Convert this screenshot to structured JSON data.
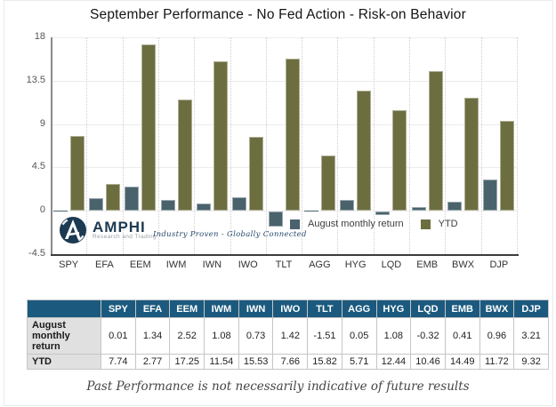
{
  "chart_data": {
    "type": "bar",
    "title": "September Performance - No Fed Action - Risk-on Behavior",
    "categories": [
      "SPY",
      "EFA",
      "EEM",
      "IWM",
      "IWN",
      "IWO",
      "TLT",
      "AGG",
      "HYG",
      "LQD",
      "EMB",
      "BWX",
      "DJP"
    ],
    "series": [
      {
        "name": "August monthly return",
        "color": "#49626c",
        "values": [
          0.01,
          1.34,
          2.52,
          1.08,
          0.73,
          1.42,
          -1.51,
          0.05,
          1.08,
          -0.32,
          0.41,
          0.96,
          3.21
        ]
      },
      {
        "name": "YTD",
        "color": "#6d6e40",
        "values": [
          7.74,
          2.77,
          17.25,
          11.54,
          15.53,
          7.66,
          15.82,
          5.71,
          12.44,
          10.46,
          14.49,
          11.72,
          9.32
        ]
      }
    ],
    "ylim": [
      -4.5,
      18
    ],
    "yticks": [
      18,
      13.5,
      9,
      4.5,
      0,
      -4.5
    ],
    "grid": true,
    "legend_position": "inside-bottom"
  },
  "logo": {
    "brand": "AMPHI",
    "subtitle": "Research and Trading",
    "tagline": "Industry Proven - Globally Connected"
  },
  "table": {
    "header": [
      "",
      "SPY",
      "EFA",
      "EEM",
      "IWM",
      "IWN",
      "IWO",
      "TLT",
      "AGG",
      "HYG",
      "LQD",
      "EMB",
      "BWX",
      "DJP"
    ],
    "rows": [
      {
        "label": "August monthly return",
        "values": [
          "0.01",
          "1.34",
          "2.52",
          "1.08",
          "0.73",
          "1.42",
          "-1.51",
          "0.05",
          "1.08",
          "-0.32",
          "0.41",
          "0.96",
          "3.21"
        ]
      },
      {
        "label": "YTD",
        "values": [
          "7.74",
          "2.77",
          "17.25",
          "11.54",
          "15.53",
          "7.66",
          "15.82",
          "5.71",
          "12.44",
          "10.46",
          "14.49",
          "11.72",
          "9.32"
        ]
      }
    ]
  },
  "caption": "Past Performance is not necessarily indicative of future results",
  "colors": {
    "august_bar": "#49626c",
    "ytd_bar": "#6d6e40",
    "table_header_bg": "#1b5a7e",
    "logo_navy": "#1c3a52"
  }
}
